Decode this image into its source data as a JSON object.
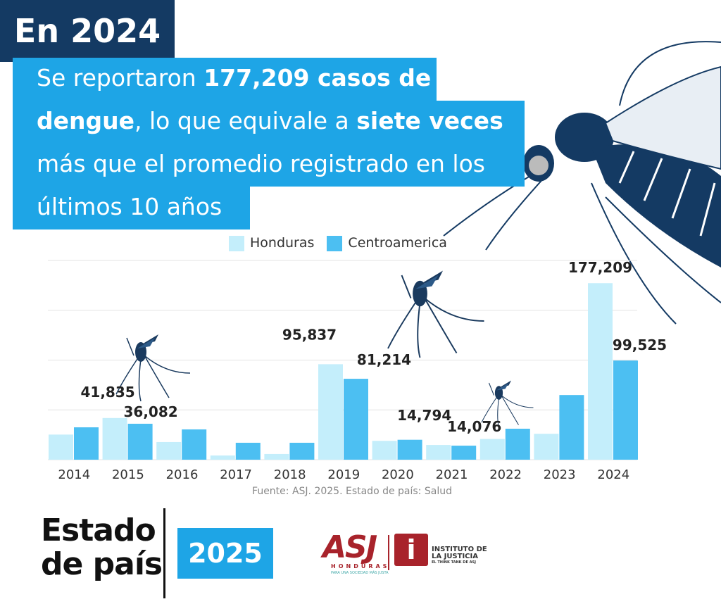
{
  "header": {
    "title": "En 2024",
    "line1_a": "Se reportaron ",
    "line1_b": "177,209 casos de",
    "line2_a": "dengue",
    "line2_b": ", lo que equivale a ",
    "line2_c": "siete veces",
    "line3": "más que el promedio registrado en los",
    "line4": "últimos 10 años"
  },
  "colors": {
    "honduras": "#c4eefb",
    "centroamerica": "#4cbff2",
    "navy": "#143a63",
    "blue": "#1ea5e6",
    "asj_red": "#a8232b"
  },
  "chart_data": {
    "type": "bar",
    "categories": [
      "2014",
      "2015",
      "2016",
      "2017",
      "2018",
      "2019",
      "2020",
      "2021",
      "2022",
      "2023",
      "2024"
    ],
    "series": [
      {
        "name": "Honduras",
        "values": [
          25200,
          41835,
          17700,
          4200,
          5700,
          95837,
          18900,
          14794,
          20800,
          26000,
          177209
        ]
      },
      {
        "name": "Centroamerica",
        "values": [
          32500,
          36082,
          30400,
          17000,
          17000,
          81214,
          20000,
          14076,
          31100,
          64900,
          99525
        ]
      }
    ],
    "data_labels": [
      {
        "series": 0,
        "index": 1,
        "text": "41,835"
      },
      {
        "series": 1,
        "index": 1,
        "text": "36,082"
      },
      {
        "series": 0,
        "index": 5,
        "text": "95,837"
      },
      {
        "series": 1,
        "index": 5,
        "text": "81,214"
      },
      {
        "series": 0,
        "index": 7,
        "text": "14,794"
      },
      {
        "series": 1,
        "index": 7,
        "text": "14,076"
      },
      {
        "series": 0,
        "index": 10,
        "text": "177,209"
      },
      {
        "series": 1,
        "index": 10,
        "text": "99,525"
      }
    ],
    "ylim": [
      0,
      200000
    ],
    "grid": true,
    "legend": "top",
    "source": "Fuente: ASJ. 2025. Estado de país: Salud"
  },
  "footer": {
    "estado_line1": "Estado",
    "estado_line2": "de país",
    "year": "2025",
    "asj": "ASJ",
    "asj_sub": "HONDURAS",
    "asj_tag": "PARA UNA SOCIEDAD MÁS JUSTA",
    "inst_line1": "INSTITUTO DE",
    "inst_line2": "LA JUSTICIA",
    "inst_line3": "EL THINK TANK DE ASJ",
    "inst_icon": "i"
  }
}
